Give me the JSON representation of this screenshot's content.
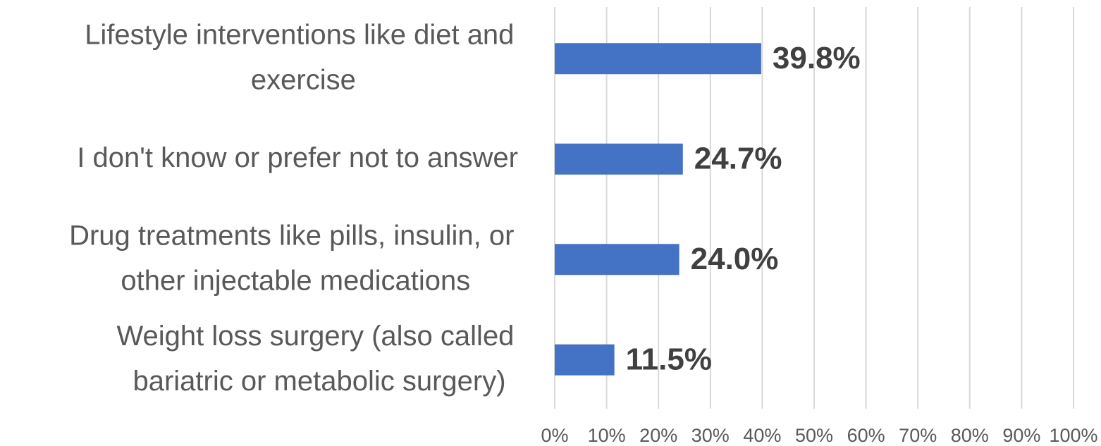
{
  "chart_data": {
    "type": "bar",
    "orientation": "horizontal",
    "categories": [
      "Lifestyle interventions like diet and exercise",
      "I don't know or prefer not to answer",
      "Drug treatments like pills, insulin, or other injectable medications",
      "Weight loss surgery (also called bariatric or metabolic surgery)"
    ],
    "values": [
      39.8,
      24.7,
      24.0,
      11.5
    ],
    "value_labels": [
      "39.8%",
      "24.7%",
      "24.0%",
      "11.5%"
    ],
    "color": "#4472c4",
    "xlim": [
      0,
      100
    ],
    "xticks": [
      {
        "value": 0,
        "label": "0%"
      },
      {
        "value": 10,
        "label": "10%"
      },
      {
        "value": 20,
        "label": "20%"
      },
      {
        "value": 30,
        "label": "30%"
      },
      {
        "value": 40,
        "label": "40%"
      },
      {
        "value": 50,
        "label": "50%"
      },
      {
        "value": 60,
        "label": "60%"
      },
      {
        "value": 70,
        "label": "70%"
      },
      {
        "value": 80,
        "label": "80%"
      },
      {
        "value": 90,
        "label": "90%"
      },
      {
        "value": 100,
        "label": "100%"
      }
    ],
    "grid": true
  }
}
